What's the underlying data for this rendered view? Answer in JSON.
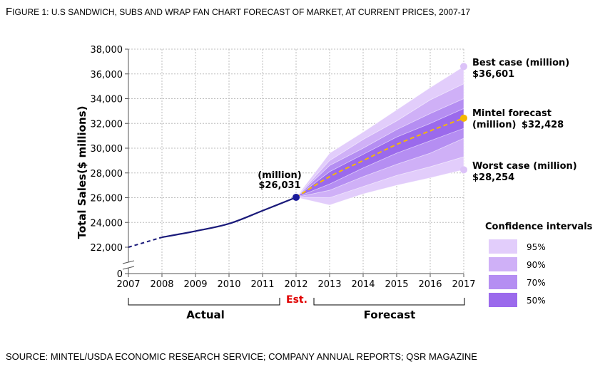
{
  "title_first": "F",
  "title_rest": "IGURE 1: U.S SANDWICH, SUBS AND WRAP FAN CHART FORECAST OF MARKET, AT CURRENT PRICES, 2007-17",
  "source_text": "SOURCE: MINTEL/USDA ECONOMIC RESEARCH SERVICE; COMPANY ANNUAL REPORTS; QSR MAGAZINE",
  "colors": {
    "actual_line": "#1a1a7a",
    "forecast_line": "#f5b800",
    "ci95": "#e2cdfb",
    "ci90": "#cfb0f7",
    "ci70": "#b58ef2",
    "ci50": "#9b6aec",
    "est": "#e00000",
    "grid": "#bdbdbd"
  },
  "chart_data": {
    "type": "area",
    "ylabel": "Total Sales($ millions)",
    "xlabel": "",
    "x_ticks": [
      "2007",
      "2008",
      "2009",
      "2010",
      "2011",
      "2012",
      "2013",
      "2014",
      "2015",
      "2016",
      "2017"
    ],
    "y_ticks": [
      "0",
      "22,000",
      "24,000",
      "26,000",
      "28,000",
      "30,000",
      "32,000",
      "34,000",
      "36,000",
      "38,000"
    ],
    "ylim": [
      22000,
      38000
    ],
    "y_axis_break": true,
    "grid": true,
    "actual_series": {
      "x": [
        2007,
        2008,
        2009,
        2010,
        2011,
        2012
      ],
      "values": [
        22000,
        22800,
        23300,
        23900,
        24950,
        26031
      ],
      "dashed_until": 2008
    },
    "forecast_series": {
      "x": [
        2012,
        2013,
        2014,
        2015,
        2016,
        2017
      ],
      "values": [
        26031,
        27700,
        29000,
        30300,
        31400,
        32428
      ]
    },
    "confidence_intervals": [
      {
        "name": "95%",
        "upper": [
          26031,
          29600,
          31300,
          33100,
          34900,
          36601
        ],
        "lower": [
          26031,
          25400,
          26300,
          27000,
          27600,
          28254
        ]
      },
      {
        "name": "90%",
        "upper": [
          26031,
          29000,
          30700,
          32200,
          33900,
          35200
        ],
        "lower": [
          26031,
          26000,
          26900,
          27800,
          28500,
          29300
        ]
      },
      {
        "name": "70%",
        "upper": [
          26031,
          28600,
          30000,
          31500,
          32800,
          34000
        ],
        "lower": [
          26031,
          26600,
          27700,
          28700,
          29600,
          30800
        ]
      },
      {
        "name": "50%",
        "upper": [
          26031,
          28100,
          29500,
          30900,
          32000,
          33200
        ],
        "lower": [
          26031,
          27100,
          28400,
          29600,
          30600,
          31600
        ]
      }
    ],
    "annotations": {
      "current_label": "(million)",
      "current_value": "$26,031",
      "best_label": "Best case (million)",
      "best_value": "$36,601",
      "mintel_label_1": "Mintel forecast",
      "mintel_label_2": "(million)",
      "mintel_value": "$32,428",
      "worst_label": "Worst case (million)",
      "worst_value": "$28,254"
    },
    "segments": {
      "actual": "Actual",
      "est": "Est.",
      "forecast": "Forecast"
    },
    "legend_title": "Confidence intervals",
    "legend_position": "bottom-right"
  }
}
